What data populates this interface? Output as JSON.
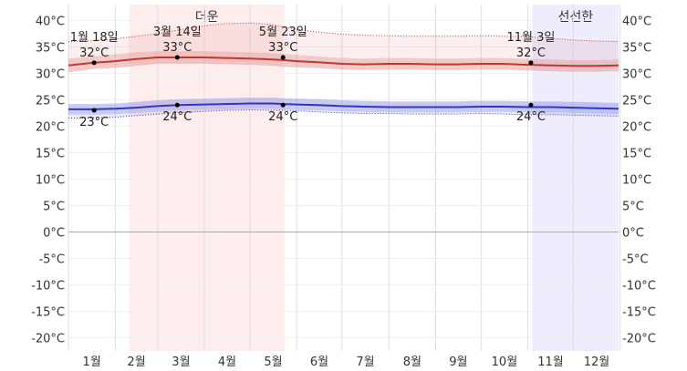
{
  "chart_data": {
    "type": "line",
    "title": "",
    "xlabel": "",
    "ylabel": "",
    "ylim": [
      -22.5,
      43
    ],
    "yticks": [
      -20,
      -15,
      -10,
      -5,
      0,
      5,
      10,
      15,
      20,
      25,
      30,
      35,
      40
    ],
    "y_unit": "°C",
    "months": [
      "1월",
      "2월",
      "3월",
      "4월",
      "5월",
      "6월",
      "7월",
      "8월",
      "9월",
      "10월",
      "11월",
      "12월"
    ],
    "seasons": [
      {
        "label": "더운",
        "start_day": 41,
        "end_day": 144,
        "color": "#ff0000"
      },
      {
        "label": "선선한",
        "start_day": 308,
        "end_day": 365,
        "color": "#0000ff"
      }
    ],
    "x_day": [
      1,
      18,
      32,
      46,
      60,
      74,
      91,
      105,
      121,
      136,
      143,
      152,
      166,
      182,
      196,
      213,
      227,
      244,
      258,
      274,
      288,
      305,
      307,
      321,
      335,
      349,
      365
    ],
    "series": [
      {
        "key": "high_mean",
        "color": "#c0392b",
        "values": [
          31.5,
          32,
          32.3,
          32.7,
          33.0,
          33.0,
          33.0,
          32.9,
          32.8,
          32.6,
          32.5,
          32.3,
          32.1,
          31.8,
          31.7,
          31.8,
          31.8,
          31.7,
          31.7,
          31.8,
          31.8,
          31.6,
          31.6,
          31.5,
          31.4,
          31.4,
          31.5
        ]
      },
      {
        "key": "low_mean",
        "color": "#2a3bbf",
        "values": [
          23.2,
          23.2,
          23.3,
          23.5,
          23.8,
          24.0,
          24.1,
          24.2,
          24.3,
          24.3,
          24.2,
          24.1,
          24.0,
          23.8,
          23.7,
          23.6,
          23.6,
          23.6,
          23.6,
          23.7,
          23.7,
          23.6,
          23.6,
          23.6,
          23.5,
          23.4,
          23.3
        ]
      },
      {
        "key": "high_p90",
        "color": "#c0392b",
        "values": [
          36.0,
          36.2,
          36.5,
          37.0,
          37.5,
          38.2,
          39.0,
          39.4,
          39.5,
          39.2,
          38.8,
          38.3,
          37.8,
          37.4,
          37.2,
          37.1,
          37.0,
          37.0,
          37.0,
          37.1,
          37.0,
          36.9,
          36.9,
          36.6,
          36.3,
          36.1,
          36.0
        ]
      },
      {
        "key": "low_p10",
        "color": "#2a3bbf",
        "values": [
          21.5,
          21.6,
          21.7,
          22.0,
          22.3,
          22.6,
          22.8,
          23.0,
          23.1,
          23.0,
          23.0,
          22.9,
          22.7,
          22.5,
          22.4,
          22.4,
          22.3,
          22.3,
          22.3,
          22.4,
          22.3,
          22.2,
          22.2,
          22.2,
          22.1,
          22.0,
          21.9
        ]
      },
      {
        "key": "high_p75_band_top",
        "color": "#e08a8a",
        "values": [
          32.8,
          33.2,
          33.6,
          34.0,
          34.2,
          34.2,
          34.2,
          34.1,
          34.0,
          33.8,
          33.7,
          33.5,
          33.2,
          32.9,
          32.8,
          32.9,
          32.9,
          32.8,
          32.8,
          32.9,
          32.9,
          32.7,
          32.7,
          32.6,
          32.5,
          32.5,
          32.6
        ]
      },
      {
        "key": "high_p25_band_bottom",
        "color": "#e08a8a",
        "values": [
          30.2,
          30.8,
          31.0,
          31.4,
          31.8,
          31.8,
          31.8,
          31.7,
          31.6,
          31.4,
          31.3,
          31.1,
          31.0,
          30.7,
          30.6,
          30.7,
          30.7,
          30.6,
          30.6,
          30.7,
          30.7,
          30.5,
          30.5,
          30.4,
          30.3,
          30.3,
          30.4
        ]
      },
      {
        "key": "low_p75_band_top",
        "color": "#8a8ae0",
        "values": [
          24.2,
          24.2,
          24.3,
          24.6,
          24.9,
          25.1,
          25.2,
          25.3,
          25.4,
          25.4,
          25.3,
          25.2,
          25.1,
          24.9,
          24.8,
          24.7,
          24.7,
          24.7,
          24.7,
          24.8,
          24.8,
          24.7,
          24.7,
          24.7,
          24.6,
          24.5,
          24.4
        ]
      },
      {
        "key": "low_p25_band_bottom",
        "color": "#8a8ae0",
        "values": [
          22.2,
          22.2,
          22.3,
          22.5,
          22.8,
          23.0,
          23.1,
          23.2,
          23.3,
          23.3,
          23.2,
          23.1,
          23.0,
          22.8,
          22.7,
          22.6,
          22.6,
          22.6,
          22.6,
          22.7,
          22.7,
          22.6,
          22.6,
          22.6,
          22.5,
          22.4,
          22.3
        ]
      }
    ],
    "annotations": [
      {
        "day": 18,
        "value": 32,
        "date_label": "1월 18일",
        "value_label": "32°C",
        "position": "above"
      },
      {
        "day": 18,
        "value": 23,
        "date_label": "",
        "value_label": "23°C",
        "position": "below"
      },
      {
        "day": 73,
        "value": 33,
        "date_label": "3월 14일",
        "value_label": "33°C",
        "position": "above"
      },
      {
        "day": 73,
        "value": 24,
        "date_label": "",
        "value_label": "24°C",
        "position": "below"
      },
      {
        "day": 143,
        "value": 33,
        "date_label": "5월 23일",
        "value_label": "33°C",
        "position": "above"
      },
      {
        "day": 143,
        "value": 24,
        "date_label": "",
        "value_label": "24°C",
        "position": "below"
      },
      {
        "day": 307,
        "value": 32,
        "date_label": "11월 3일",
        "value_label": "32°C",
        "position": "above"
      },
      {
        "day": 307,
        "value": 24,
        "date_label": "",
        "value_label": "24°C",
        "position": "below"
      }
    ]
  }
}
